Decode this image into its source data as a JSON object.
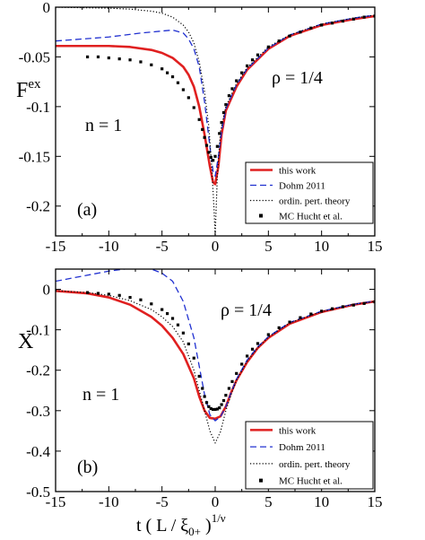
{
  "chart_data": [
    {
      "type": "line",
      "ylabel": "F",
      "ylabel_sup": "ex",
      "xlim": [
        -15,
        15
      ],
      "ylim": [
        -0.23,
        0
      ],
      "xticks": [
        -15,
        -10,
        -5,
        0,
        5,
        10,
        15
      ],
      "xtick_labels": [
        "-15",
        "-10",
        "-5",
        "0",
        "5",
        "10",
        "15"
      ],
      "yticks": [
        0,
        -0.05,
        -0.1,
        -0.15,
        -0.2
      ],
      "ytick_labels": [
        "0",
        "-0.05",
        "-0.1",
        "-0.15",
        "-0.2"
      ],
      "annotations": {
        "rho": "ρ = 1/4",
        "n": "n = 1",
        "panel": "(a)"
      },
      "legend_position": "bottom-right",
      "series": [
        {
          "name": "this work",
          "style": "solid",
          "color": "#e02020",
          "x": [
            -15,
            -10,
            -8,
            -6,
            -5,
            -4,
            -3,
            -2.5,
            -2,
            -1.5,
            -1,
            -0.5,
            -0.2,
            0,
            0.3,
            0.6,
            1,
            2,
            3,
            5,
            7,
            10,
            13,
            15
          ],
          "y": [
            -0.039,
            -0.039,
            -0.04,
            -0.043,
            -0.046,
            -0.051,
            -0.06,
            -0.068,
            -0.08,
            -0.1,
            -0.128,
            -0.16,
            -0.176,
            -0.178,
            -0.16,
            -0.128,
            -0.104,
            -0.08,
            -0.063,
            -0.042,
            -0.029,
            -0.018,
            -0.012,
            -0.009
          ]
        },
        {
          "name": "Dohm 2011",
          "style": "dashed",
          "color": "#2030d0",
          "x": [
            -15,
            -10,
            -7,
            -5,
            -4,
            -3,
            -2.5,
            -2,
            -1.5,
            -1,
            -0.5,
            -0.2,
            0,
            0.3,
            0.6,
            1,
            2,
            3,
            5,
            7,
            10,
            13,
            15
          ],
          "y": [
            -0.034,
            -0.03,
            -0.026,
            -0.024,
            -0.023,
            -0.026,
            -0.032,
            -0.042,
            -0.06,
            -0.095,
            -0.14,
            -0.165,
            -0.17,
            -0.15,
            -0.125,
            -0.102,
            -0.078,
            -0.062,
            -0.041,
            -0.028,
            -0.017,
            -0.011,
            -0.008
          ]
        },
        {
          "name": "ordin. pert. theory",
          "style": "dotted",
          "color": "#000000",
          "x": [
            -15,
            -10,
            -8,
            -6,
            -5,
            -4,
            -3,
            -2.5,
            -2,
            -1.5,
            -1,
            -0.6,
            -0.3,
            -0.1,
            0,
            0.2,
            0.5,
            1,
            2,
            3,
            5,
            7,
            10,
            13,
            15
          ],
          "y": [
            0,
            -0.001,
            -0.002,
            -0.004,
            -0.006,
            -0.01,
            -0.018,
            -0.025,
            -0.036,
            -0.055,
            -0.085,
            -0.12,
            -0.165,
            -0.205,
            -0.23,
            -0.17,
            -0.125,
            -0.1,
            -0.077,
            -0.061,
            -0.04,
            -0.028,
            -0.017,
            -0.011,
            -0.008
          ]
        },
        {
          "name": "MC  Hucht et al.",
          "style": "points",
          "color": "#000000",
          "x": [
            -12,
            -11,
            -10,
            -9,
            -8,
            -7,
            -6,
            -5,
            -4.5,
            -4,
            -3.5,
            -3,
            -2.5,
            -2,
            -1.5,
            -1.2,
            -1,
            -0.8,
            -0.6,
            -0.4,
            -0.2,
            0,
            0.2,
            0.4,
            0.6,
            0.8,
            1,
            1.3,
            1.6,
            2,
            2.5,
            3,
            3.5,
            4,
            5,
            6,
            7,
            8,
            9,
            10,
            11,
            12,
            13,
            14,
            15
          ],
          "y": [
            -0.05,
            -0.05,
            -0.051,
            -0.052,
            -0.053,
            -0.055,
            -0.058,
            -0.062,
            -0.066,
            -0.07,
            -0.076,
            -0.083,
            -0.091,
            -0.101,
            -0.113,
            -0.123,
            -0.131,
            -0.139,
            -0.146,
            -0.151,
            -0.154,
            -0.15,
            -0.14,
            -0.127,
            -0.116,
            -0.106,
            -0.098,
            -0.089,
            -0.082,
            -0.074,
            -0.066,
            -0.059,
            -0.053,
            -0.048,
            -0.04,
            -0.034,
            -0.029,
            -0.025,
            -0.021,
            -0.018,
            -0.016,
            -0.014,
            -0.012,
            -0.01,
            -0.009
          ]
        }
      ]
    },
    {
      "type": "line",
      "ylabel": "X",
      "xlabel": "t ( L / ξ",
      "xlabel_sub": "0+",
      "xlabel_close": " )",
      "xlabel_sup": "1/ν",
      "xlim": [
        -15,
        15
      ],
      "ylim": [
        -0.5,
        0.05
      ],
      "xticks": [
        -15,
        -10,
        -5,
        0,
        5,
        10,
        15
      ],
      "xtick_labels": [
        "-15",
        "-10",
        "-5",
        "0",
        "5",
        "10",
        "15"
      ],
      "yticks": [
        0,
        -0.1,
        -0.2,
        -0.3,
        -0.4,
        -0.5
      ],
      "ytick_labels": [
        "0",
        "-0.1",
        "-0.2",
        "-0.3",
        "-0.4",
        "-0.5"
      ],
      "annotations": {
        "rho": "ρ = 1/4",
        "n": "n = 1",
        "panel": "(b)"
      },
      "legend_position": "bottom-right",
      "series": [
        {
          "name": "this work",
          "style": "solid",
          "color": "#e02020",
          "x": [
            -15,
            -12,
            -10,
            -8,
            -6,
            -5,
            -4,
            -3,
            -2,
            -1.5,
            -1,
            -0.5,
            0,
            0.5,
            1,
            1.5,
            2,
            3,
            4,
            5,
            7,
            10,
            13,
            15
          ],
          "y": [
            -0.004,
            -0.01,
            -0.02,
            -0.038,
            -0.068,
            -0.09,
            -0.12,
            -0.16,
            -0.22,
            -0.265,
            -0.3,
            -0.318,
            -0.32,
            -0.314,
            -0.29,
            -0.255,
            -0.225,
            -0.18,
            -0.145,
            -0.12,
            -0.085,
            -0.056,
            -0.038,
            -0.03
          ]
        },
        {
          "name": "Dohm 2011",
          "style": "dashed",
          "color": "#2030d0",
          "x": [
            -15,
            -12,
            -10,
            -8,
            -7,
            -6,
            -5,
            -4,
            -3,
            -2,
            -1.5,
            -1,
            -0.5,
            0,
            0.5,
            1,
            1.5,
            2,
            3,
            4,
            5,
            7,
            10,
            13,
            15
          ],
          "y": [
            0.02,
            0.035,
            0.045,
            0.052,
            0.053,
            0.05,
            0.04,
            0.02,
            -0.03,
            -0.12,
            -0.19,
            -0.26,
            -0.31,
            -0.325,
            -0.315,
            -0.29,
            -0.255,
            -0.222,
            -0.175,
            -0.142,
            -0.117,
            -0.082,
            -0.054,
            -0.037,
            -0.029
          ]
        },
        {
          "name": "ordin. pert. theory",
          "style": "dotted",
          "color": "#000000",
          "x": [
            -15,
            -12,
            -10,
            -8,
            -6,
            -5,
            -4,
            -3,
            -2,
            -1.5,
            -1,
            -0.5,
            0,
            0.5,
            1,
            1.5,
            2,
            3,
            4,
            5,
            7,
            10,
            13,
            15
          ],
          "y": [
            -0.003,
            -0.008,
            -0.015,
            -0.028,
            -0.05,
            -0.068,
            -0.092,
            -0.13,
            -0.2,
            -0.25,
            -0.3,
            -0.35,
            -0.38,
            -0.352,
            -0.3,
            -0.26,
            -0.225,
            -0.178,
            -0.144,
            -0.118,
            -0.083,
            -0.055,
            -0.037,
            -0.03
          ]
        },
        {
          "name": "MC  Hucht et al.",
          "style": "points",
          "color": "#000000",
          "x": [
            -12,
            -11,
            -10,
            -9,
            -8,
            -7,
            -6,
            -5,
            -4.5,
            -4,
            -3.5,
            -3,
            -2.5,
            -2,
            -1.5,
            -1.2,
            -1,
            -0.8,
            -0.6,
            -0.4,
            -0.2,
            0,
            0.2,
            0.4,
            0.6,
            0.8,
            1,
            1.3,
            1.6,
            2,
            2.5,
            3,
            3.5,
            4,
            5,
            6,
            7,
            8,
            9,
            10,
            11,
            12,
            13,
            14,
            15
          ],
          "y": [
            -0.008,
            -0.01,
            -0.012,
            -0.015,
            -0.02,
            -0.026,
            -0.036,
            -0.05,
            -0.06,
            -0.072,
            -0.088,
            -0.108,
            -0.135,
            -0.17,
            -0.215,
            -0.245,
            -0.265,
            -0.28,
            -0.29,
            -0.295,
            -0.297,
            -0.297,
            -0.296,
            -0.293,
            -0.285,
            -0.275,
            -0.262,
            -0.245,
            -0.228,
            -0.208,
            -0.185,
            -0.165,
            -0.148,
            -0.134,
            -0.112,
            -0.095,
            -0.081,
            -0.07,
            -0.061,
            -0.054,
            -0.048,
            -0.043,
            -0.039,
            -0.035,
            -0.031
          ]
        }
      ]
    }
  ]
}
